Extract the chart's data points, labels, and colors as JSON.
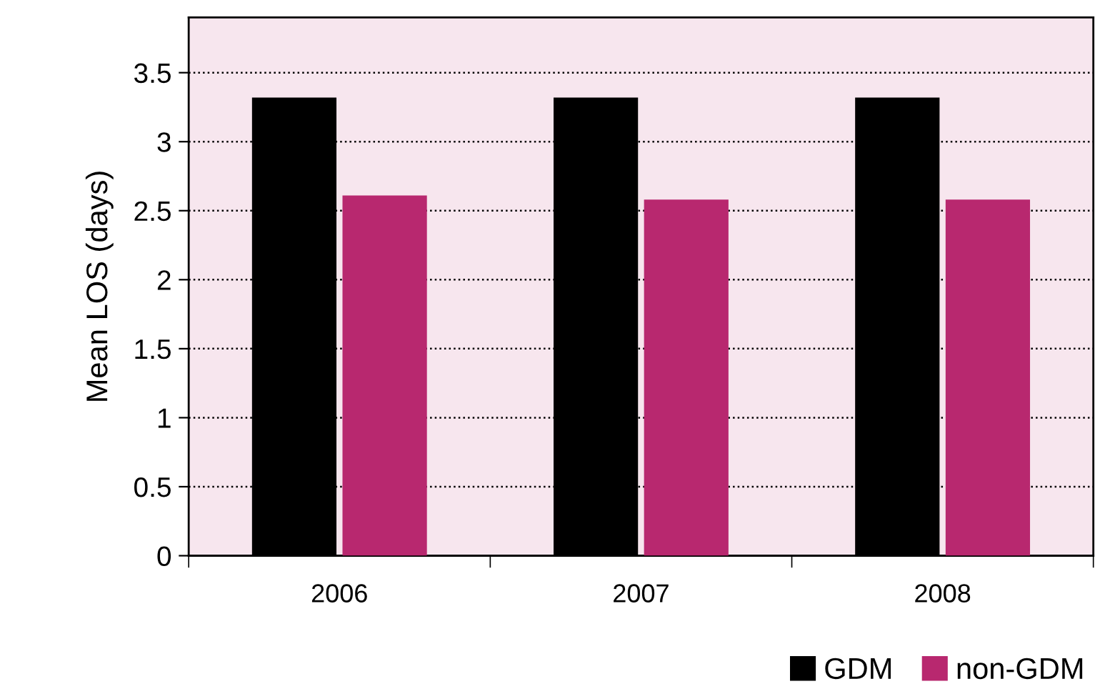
{
  "chart_data": {
    "type": "bar",
    "ylabel": "Mean LOS (days)",
    "categories": [
      "2006",
      "2007",
      "2008"
    ],
    "series": [
      {
        "name": "GDM",
        "color": "#000000",
        "values": [
          3.32,
          3.32,
          3.32
        ]
      },
      {
        "name": "non-GDM",
        "color": "#b8286f",
        "values": [
          2.61,
          2.58,
          2.58
        ]
      }
    ],
    "ylim": [
      0,
      3.9
    ],
    "yticks": [
      0,
      0.5,
      1,
      1.5,
      2,
      2.5,
      3,
      3.5
    ],
    "grid": "y",
    "legend": "bottom right"
  }
}
